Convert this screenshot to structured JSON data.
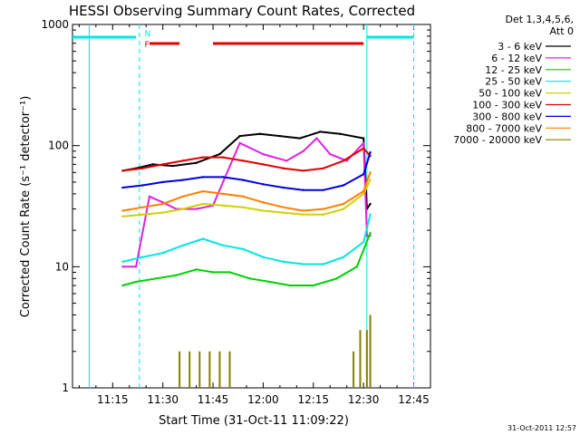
{
  "chart_data": {
    "type": "line",
    "title": "HESSI Observing Summary Count Rates, Corrected",
    "xlabel": "Start Time (31-Oct-11 11:09:22)",
    "ylabel": "Corrected Count Rate (s⁻¹ detector⁻¹)",
    "yscale": "log",
    "ylim": [
      1,
      1000
    ],
    "xlim_minutes": [
      663,
      770
    ],
    "x_ticks": [
      "11:15",
      "11:30",
      "11:45",
      "12:00",
      "12:15",
      "12:30",
      "12:45"
    ],
    "y_ticks": [
      "1",
      "10",
      "100",
      "1000"
    ],
    "legend_title": [
      "Det 1,3,4,5,6,",
      "Att 0"
    ],
    "legend_position": "right",
    "footer_date": "31-Oct-2011 12:57",
    "flags": [
      {
        "label": "N",
        "color": "#00e5e5"
      },
      {
        "label": "F",
        "color": "#e00000"
      }
    ],
    "vertical_lines": [
      {
        "x": "11:08",
        "style": "solid"
      },
      {
        "x": "11:23",
        "style": "dashed"
      },
      {
        "x": "12:31",
        "style": "solid"
      },
      {
        "x": "12:45",
        "style": "dashed"
      }
    ],
    "series": [
      {
        "name": "3 - 6 keV",
        "color": "#000000",
        "x": [
          "11:18",
          "11:22",
          "11:27",
          "11:33",
          "11:40",
          "11:47",
          "11:53",
          "11:59",
          "12:05",
          "12:11",
          "12:17",
          "12:23",
          "12:30",
          "12:31",
          "12:32"
        ],
        "values": [
          62,
          65,
          70,
          68,
          72,
          85,
          120,
          125,
          120,
          115,
          130,
          125,
          115,
          30,
          33
        ]
      },
      {
        "name": "6 - 12 keV",
        "color": "#e020e0",
        "x": [
          "11:18",
          "11:22",
          "11:26",
          "11:30",
          "11:34",
          "11:40",
          "11:45",
          "11:48",
          "11:53",
          "12:00",
          "12:07",
          "12:12",
          "12:16",
          "12:20",
          "12:25",
          "12:30",
          "12:31",
          "12:32"
        ],
        "values": [
          10,
          10,
          38,
          34,
          30,
          30,
          32,
          50,
          105,
          85,
          75,
          90,
          115,
          85,
          75,
          105,
          18,
          18
        ]
      },
      {
        "name": "12 - 25 keV",
        "color": "#00d000",
        "x": [
          "11:18",
          "11:22",
          "11:28",
          "11:34",
          "11:40",
          "11:45",
          "11:50",
          "11:56",
          "12:02",
          "12:08",
          "12:15",
          "12:22",
          "12:28",
          "12:32"
        ],
        "values": [
          7,
          7.5,
          8,
          8.5,
          9.5,
          9,
          9,
          8,
          7.5,
          7,
          7,
          8,
          10,
          19
        ]
      },
      {
        "name": "25 - 50 keV",
        "color": "#00e5e5",
        "x": [
          "11:18",
          "11:24",
          "11:30",
          "11:36",
          "11:42",
          "11:48",
          "11:54",
          "12:00",
          "12:06",
          "12:12",
          "12:18",
          "12:24",
          "12:30",
          "12:32"
        ],
        "values": [
          11,
          12,
          13,
          15,
          17,
          15,
          14,
          12,
          11,
          10.5,
          10.5,
          12,
          16,
          27
        ]
      },
      {
        "name": "50 - 100 keV",
        "color": "#d0d000",
        "x": [
          "11:18",
          "11:24",
          "11:30",
          "11:36",
          "11:42",
          "11:48",
          "11:54",
          "12:00",
          "12:06",
          "12:12",
          "12:18",
          "12:24",
          "12:30",
          "12:32"
        ],
        "values": [
          26,
          27,
          28,
          30,
          33,
          32,
          31,
          29,
          28,
          27,
          27,
          30,
          40,
          52
        ]
      },
      {
        "name": "100 - 300 keV",
        "color": "#e00000",
        "x": [
          "11:18",
          "11:24",
          "11:30",
          "11:36",
          "11:42",
          "11:48",
          "11:54",
          "12:00",
          "12:06",
          "12:12",
          "12:18",
          "12:24",
          "12:30",
          "12:32"
        ],
        "values": [
          62,
          65,
          70,
          75,
          80,
          80,
          75,
          70,
          65,
          62,
          65,
          75,
          95,
          82
        ]
      },
      {
        "name": "300 - 800 keV",
        "color": "#0000e0",
        "x": [
          "11:18",
          "11:24",
          "11:30",
          "11:36",
          "11:42",
          "11:48",
          "11:54",
          "12:00",
          "12:06",
          "12:12",
          "12:18",
          "12:24",
          "12:30",
          "12:32"
        ],
        "values": [
          45,
          47,
          50,
          52,
          55,
          55,
          52,
          48,
          45,
          43,
          43,
          47,
          58,
          88
        ]
      },
      {
        "name": "800 - 7000 keV",
        "color": "#ff8000",
        "x": [
          "11:18",
          "11:24",
          "11:30",
          "11:36",
          "11:42",
          "11:48",
          "11:54",
          "12:00",
          "12:06",
          "12:12",
          "12:18",
          "12:24",
          "12:30",
          "12:32"
        ],
        "values": [
          29,
          31,
          33,
          38,
          42,
          40,
          38,
          34,
          31,
          29,
          30,
          33,
          42,
          60
        ]
      },
      {
        "name": "7000 - 20000 keV",
        "color": "#808000",
        "x": [
          "11:35",
          "11:38",
          "11:41",
          "11:44",
          "11:47",
          "11:50",
          "12:27",
          "12:29",
          "12:31",
          "12:32"
        ],
        "values": [
          2,
          2,
          2,
          2,
          2,
          2,
          2,
          3,
          3,
          4
        ]
      }
    ]
  }
}
